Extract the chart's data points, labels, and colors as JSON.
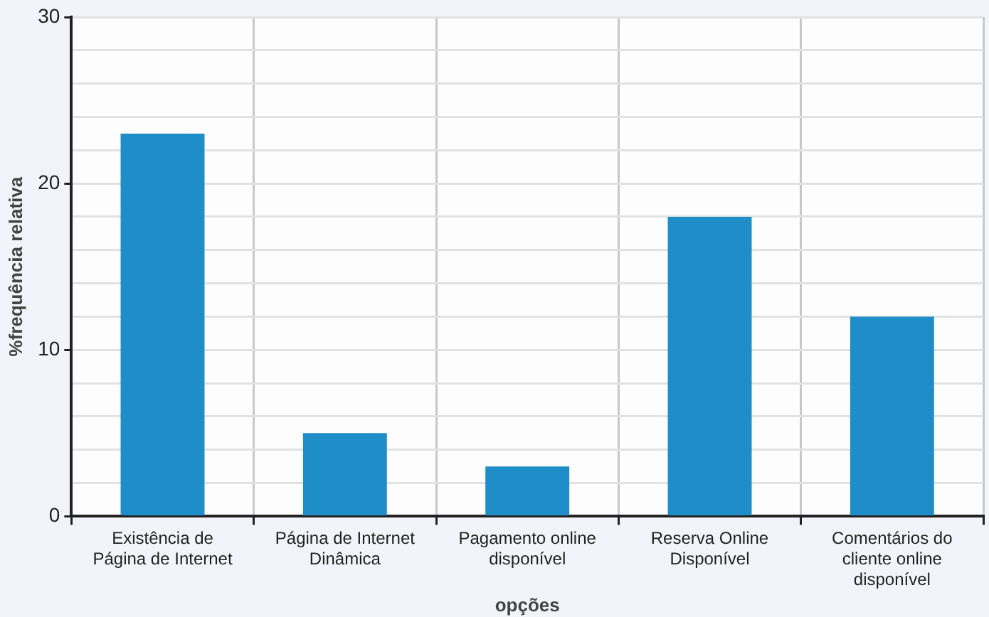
{
  "chart_data": {
    "type": "bar",
    "xlabel": "opções",
    "ylabel": "%frequência relativa",
    "categories": [
      "Existência de Página de Internet",
      "Página de Internet Dinâmica",
      "Pagamento online disponível",
      "Reserva Online Disponível",
      "Comentários do cliente online disponível"
    ],
    "values": [
      23,
      5,
      3,
      18,
      12
    ],
    "color": "#1f8dc8",
    "ylim": [
      0,
      30
    ],
    "yticks": [
      0,
      {
        "value": 2,
        "label": null
      },
      {
        "value": 4,
        "label": null
      },
      {
        "value": 6,
        "label": null
      },
      {
        "value": 8,
        "label": null
      },
      10,
      {
        "value": 12,
        "label": null
      },
      {
        "value": 14,
        "label": null
      },
      {
        "value": 16,
        "label": null
      },
      {
        "value": 18,
        "label": null
      },
      20,
      {
        "value": 22,
        "label": null
      },
      {
        "value": 24,
        "label": null
      },
      {
        "value": 26,
        "label": null
      },
      {
        "value": 28,
        "label": null
      },
      30
    ],
    "grid": true,
    "legend": false
  }
}
